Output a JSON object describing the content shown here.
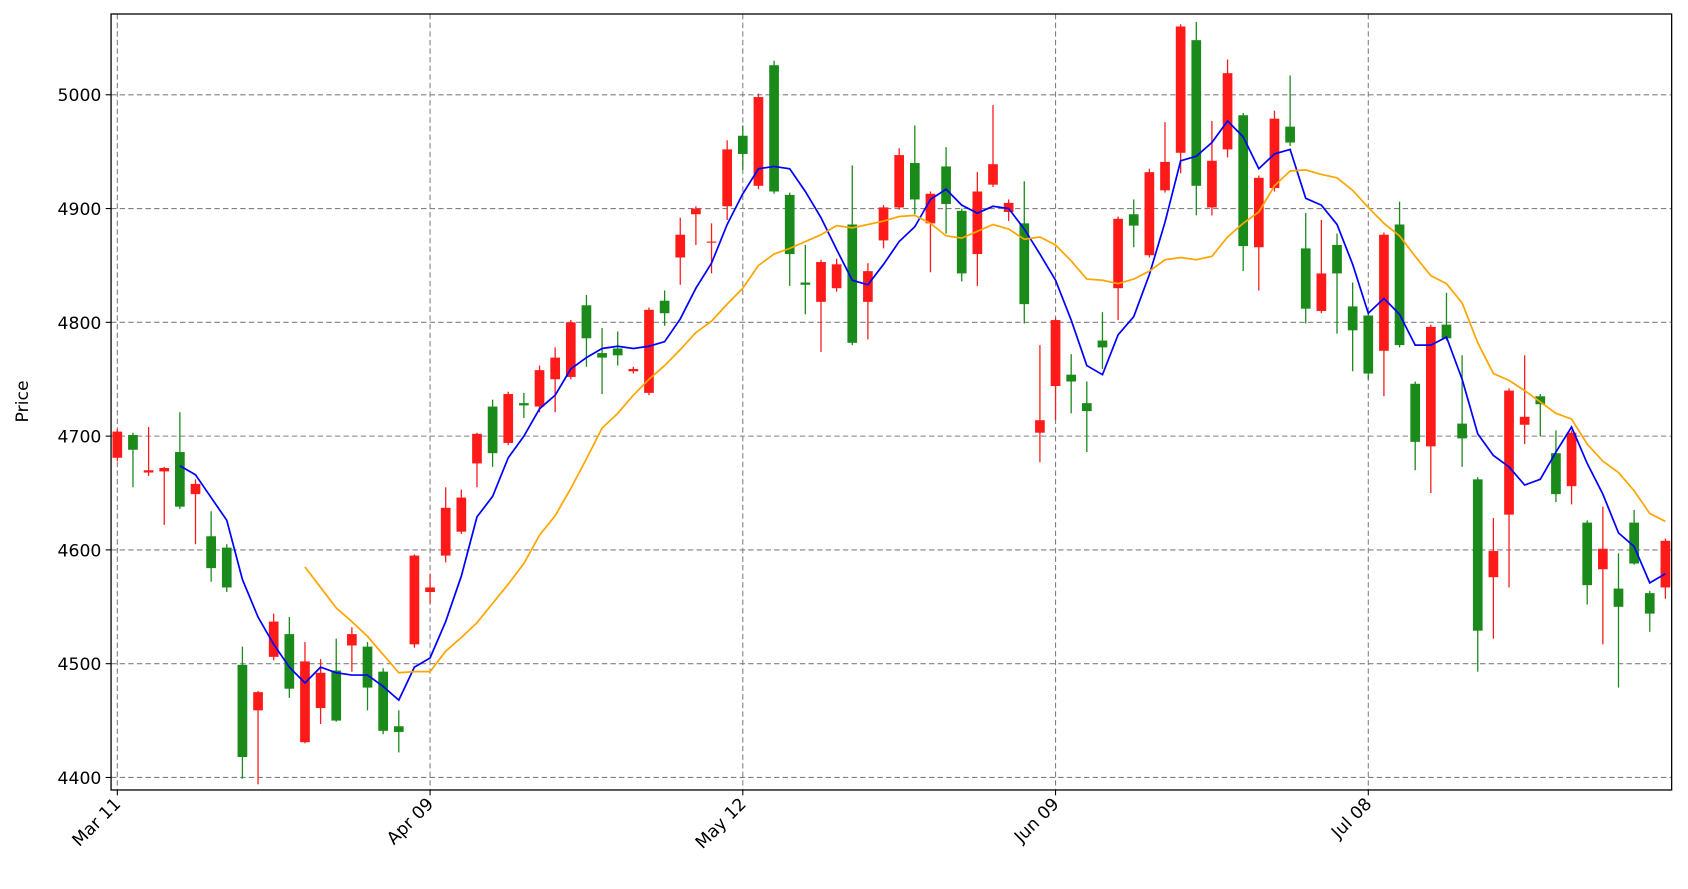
{
  "chart_data": {
    "type": "candlestick",
    "ylabel": "Price",
    "categories": [
      "Mar 11",
      null,
      null,
      null,
      null,
      null,
      null,
      null,
      null,
      null,
      null,
      null,
      null,
      null,
      null,
      null,
      null,
      null,
      null,
      null,
      "Apr 09",
      null,
      null,
      null,
      null,
      null,
      null,
      null,
      null,
      null,
      null,
      null,
      null,
      null,
      null,
      null,
      null,
      null,
      null,
      null,
      "May 12",
      null,
      null,
      null,
      null,
      null,
      null,
      null,
      null,
      null,
      null,
      null,
      null,
      null,
      null,
      null,
      null,
      null,
      null,
      null,
      "Jun 09",
      null,
      null,
      null,
      null,
      null,
      null,
      null,
      null,
      null,
      null,
      null,
      null,
      null,
      null,
      null,
      null,
      null,
      null,
      null,
      "Jul 08",
      null,
      null,
      null,
      null,
      null,
      null,
      null,
      null,
      null,
      null,
      null,
      null,
      null,
      null,
      null,
      null,
      null,
      null,
      null
    ],
    "open": [
      4681,
      4701,
      4668,
      4669,
      4686,
      4649,
      4612,
      4602,
      4499,
      4459,
      4506,
      4526,
      4431,
      4461,
      4494,
      4516,
      4515,
      4493,
      4445,
      4517,
      4563,
      4595,
      4616,
      4676,
      4726,
      4694,
      4729,
      4726,
      4750,
      4752,
      4815,
      4773,
      4777,
      4757,
      4738,
      4819,
      4857,
      4895,
      4870,
      4902,
      4964,
      4920,
      5026,
      4912,
      4835,
      4818,
      4830,
      4886,
      4818,
      4872,
      4901,
      4940,
      4887,
      4937,
      4898,
      4860,
      4921,
      4897,
      4887,
      4703,
      4744,
      4754,
      4729,
      4784,
      4830,
      4895,
      4859,
      4916,
      4949,
      5048,
      4901,
      4952,
      4982,
      4866,
      4918,
      4972,
      4865,
      4810,
      4868,
      4814,
      4806,
      4775,
      4886,
      4746,
      4691,
      4798,
      4711,
      4662,
      4576,
      4631,
      4710,
      4735,
      4685,
      4656,
      4624,
      4583,
      4566,
      4624,
      4562,
      4567
    ],
    "high": [
      4706,
      4703,
      4708,
      4673,
      4721,
      4662,
      4634,
      4605,
      4515,
      4476,
      4544,
      4541,
      4519,
      4504,
      4522,
      4532,
      4519,
      4496,
      4459,
      4596,
      4579,
      4655,
      4653,
      4703,
      4732,
      4739,
      4738,
      4762,
      4778,
      4802,
      4824,
      4795,
      4792,
      4761,
      4813,
      4828,
      4892,
      4902,
      4887,
      4960,
      4973,
      5001,
      5030,
      4914,
      4868,
      4855,
      4856,
      4938,
      4852,
      4903,
      4953,
      4973,
      4915,
      4954,
      4900,
      4932,
      4991,
      4908,
      4924,
      4780,
      4804,
      4772,
      4748,
      4809,
      4893,
      4908,
      4935,
      4976,
      5062,
      5064,
      4977,
      5031,
      4984,
      4929,
      4986,
      5017,
      4896,
      4890,
      4878,
      4835,
      4809,
      4879,
      4906,
      4748,
      4798,
      4826,
      4771,
      4664,
      4628,
      4742,
      4771,
      4737,
      4705,
      4705,
      4626,
      4638,
      4597,
      4635,
      4564,
      4610
    ],
    "low": [
      4678,
      4655,
      4665,
      4622,
      4636,
      4605,
      4572,
      4563,
      4399,
      4394,
      4503,
      4470,
      4430,
      4447,
      4449,
      4493,
      4459,
      4438,
      4422,
      4514,
      4553,
      4589,
      4614,
      4655,
      4673,
      4692,
      4716,
      4721,
      4721,
      4750,
      4761,
      4737,
      4762,
      4755,
      4736,
      4797,
      4833,
      4868,
      4843,
      4890,
      4934,
      4917,
      4913,
      4832,
      4807,
      4774,
      4827,
      4780,
      4785,
      4865,
      4899,
      4895,
      4844,
      4878,
      4836,
      4832,
      4919,
      4889,
      4799,
      4677,
      4714,
      4720,
      4686,
      4759,
      4802,
      4866,
      4857,
      4914,
      4931,
      4894,
      4894,
      4945,
      4845,
      4828,
      4915,
      4955,
      4799,
      4808,
      4790,
      4757,
      4750,
      4735,
      4778,
      4670,
      4650,
      4784,
      4673,
      4493,
      4522,
      4567,
      4693,
      4700,
      4642,
      4640,
      4552,
      4517,
      4479,
      4587,
      4528,
      4557
    ],
    "close": [
      4704,
      4688,
      4670,
      4672,
      4638,
      4658,
      4584,
      4567,
      4418,
      4475,
      4537,
      4478,
      4502,
      4492,
      4450,
      4526,
      4479,
      4441,
      4440,
      4595,
      4567,
      4637,
      4646,
      4702,
      4685,
      4737,
      4727,
      4758,
      4769,
      4800,
      4786,
      4769,
      4771,
      4759,
      4811,
      4808,
      4877,
      4900,
      4871,
      4952,
      4948,
      4998,
      4915,
      4860,
      4833,
      4853,
      4851,
      4782,
      4845,
      4901,
      4947,
      4908,
      4913,
      4904,
      4843,
      4915,
      4939,
      4905,
      4816,
      4714,
      4802,
      4748,
      4722,
      4778,
      4891,
      4885,
      4932,
      4941,
      5060,
      4920,
      4942,
      5019,
      4867,
      4927,
      4979,
      4958,
      4812,
      4843,
      4843,
      4793,
      4755,
      4877,
      4780,
      4695,
      4796,
      4786,
      4698,
      4529,
      4599,
      4740,
      4717,
      4728,
      4649,
      4703,
      4569,
      4601,
      4550,
      4588,
      4544,
      4608
    ],
    "up_color": "#ff1a1a",
    "down_color": "#1a8a1a",
    "series": [
      {
        "color": "#0000ff",
        "values": [
          null,
          null,
          null,
          null,
          4674,
          4666,
          4646,
          4626,
          4574,
          4541,
          4517,
          4497,
          4483,
          4497,
          4492,
          4490,
          4490,
          4480,
          4468,
          4497,
          4505,
          4537,
          4577,
          4629,
          4647,
          4681,
          4700,
          4724,
          4736,
          4759,
          4769,
          4777,
          4779,
          4777,
          4779,
          4783,
          4803,
          4830,
          4852,
          4886,
          4913,
          4935,
          4937,
          4935,
          4915,
          4892,
          4864,
          4837,
          4833,
          4851,
          4871,
          4884,
          4908,
          4917,
          4903,
          4896,
          4902,
          4900,
          4882,
          4860,
          4837,
          4802,
          4762,
          4754,
          4789,
          4805,
          4842,
          4888,
          4942,
          4946,
          4958,
          4977,
          4963,
          4935,
          4948,
          4952,
          4909,
          4903,
          4886,
          4851,
          4808,
          4821,
          4807,
          4780,
          4780,
          4787,
          4750,
          4702,
          4683,
          4673,
          4657,
          4662,
          4686,
          4708,
          4676,
          4649,
          4615,
          4603,
          4571,
          4579
        ]
      },
      {
        "color": "#ffa500",
        "values": [
          null,
          null,
          null,
          null,
          null,
          null,
          null,
          null,
          null,
          null,
          null,
          null,
          4585,
          4567,
          4549,
          4537,
          4524,
          4508,
          4492,
          4493,
          4493,
          4511,
          4523,
          4536,
          4553,
          4570,
          4588,
          4613,
          4630,
          4654,
          4680,
          4707,
          4720,
          4736,
          4750,
          4762,
          4776,
          4791,
          4801,
          4816,
          4830,
          4850,
          4860,
          4865,
          4871,
          4877,
          4885,
          4883,
          4886,
          4889,
          4893,
          4894,
          4887,
          4876,
          4874,
          4880,
          4886,
          4882,
          4873,
          4875,
          4868,
          4854,
          4838,
          4837,
          4834,
          4838,
          4845,
          4855,
          4857,
          4855,
          4858,
          4875,
          4887,
          4897,
          4920,
          4933,
          4934,
          4930,
          4927,
          4916,
          4901,
          4887,
          4876,
          4858,
          4841,
          4834,
          4817,
          4782,
          4755,
          4749,
          4740,
          4730,
          4720,
          4715,
          4693,
          4678,
          4668,
          4652,
          4632,
          4625
        ]
      }
    ],
    "xlim": [
      -0.4,
      99.4
    ],
    "ylim": [
      4389,
      5071
    ],
    "yticks": [
      4400,
      4500,
      4600,
      4700,
      4800,
      4900,
      5000
    ],
    "grid": true
  }
}
